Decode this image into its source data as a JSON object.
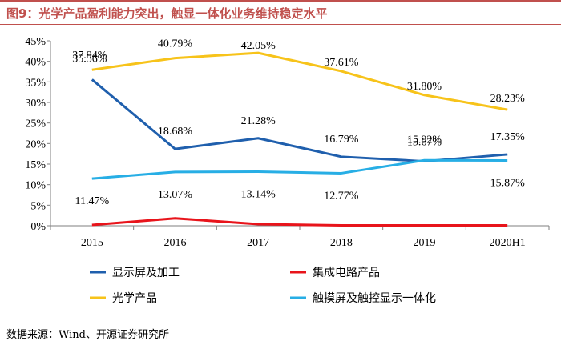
{
  "header": {
    "title": "图9：光学产品盈利能力突出，触显一体化业务维持稳定水平"
  },
  "footer": {
    "source": "数据来源：Wind、开源证券研究所"
  },
  "chart_data": {
    "type": "line",
    "title": "图9：光学产品盈利能力突出，触显一体化业务维持稳定水平",
    "xlabel": "",
    "ylabel": "",
    "categories": [
      "2015",
      "2016",
      "2017",
      "2018",
      "2019",
      "2020H1"
    ],
    "ylim": [
      0,
      45
    ],
    "yticks": [
      "0%",
      "5%",
      "10%",
      "15%",
      "20%",
      "25%",
      "30%",
      "35%",
      "40%",
      "45%"
    ],
    "grid": false,
    "legend_position": "bottom",
    "series": [
      {
        "name": "显示屏及加工",
        "color": "#1f5fad",
        "values": [
          35.56,
          18.68,
          21.28,
          16.79,
          15.67,
          17.35
        ],
        "labels": [
          "35.56%",
          "18.68%",
          "21.28%",
          "16.79%",
          "15.67%",
          "17.35%"
        ]
      },
      {
        "name": "集成电路产品",
        "color": "#e8141b",
        "values": [
          0.2,
          1.8,
          0.4,
          0.1,
          0.1,
          0.1
        ],
        "labels": []
      },
      {
        "name": "光学产品",
        "color": "#f7c31a",
        "values": [
          37.94,
          40.79,
          42.05,
          37.61,
          31.8,
          28.23
        ],
        "labels": [
          "37.94%",
          "40.79%",
          "42.05%",
          "37.61%",
          "31.80%",
          "28.23%"
        ]
      },
      {
        "name": "触摸屏及触控显示一体化",
        "color": "#27aee5",
        "values": [
          11.47,
          13.07,
          13.14,
          12.77,
          15.92,
          15.87
        ],
        "labels": [
          "11.47%",
          "13.07%",
          "13.14%",
          "12.77%",
          "15.92%",
          "15.87%"
        ]
      }
    ]
  }
}
